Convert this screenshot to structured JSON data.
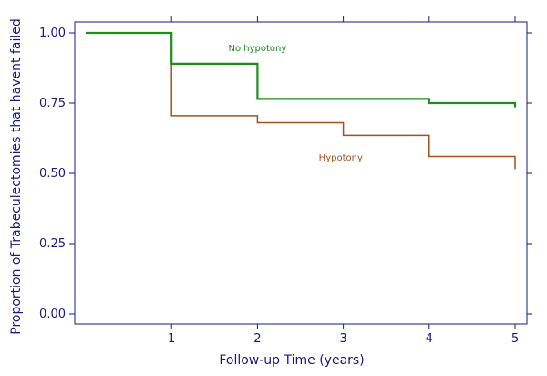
{
  "chart_data": {
    "type": "line",
    "step": true,
    "title": "",
    "xlabel": "Follow-up Time (years)",
    "ylabel": "Proportion of Trabeculectomies that havent failed",
    "xlim": [
      0,
      5
    ],
    "ylim": [
      0,
      1
    ],
    "xticks": [
      1,
      2,
      3,
      4,
      5
    ],
    "yticks": [
      0,
      0.25,
      0.5,
      0.75,
      1
    ],
    "ytick_labels": [
      "0.00",
      "0.25",
      "0.50",
      "0.75",
      "1.00"
    ],
    "grid": false,
    "series": [
      {
        "name": "No hypotony",
        "color": "#1e8c1e",
        "x": [
          0,
          1,
          2,
          4,
          5
        ],
        "y": [
          1.0,
          0.89,
          0.765,
          0.75,
          0.735
        ]
      },
      {
        "name": "Hypotony",
        "color": "#a0521e",
        "x": [
          0,
          1,
          2,
          3,
          4,
          5
        ],
        "y": [
          1.0,
          0.705,
          0.68,
          0.635,
          0.56,
          0.515
        ]
      }
    ]
  }
}
